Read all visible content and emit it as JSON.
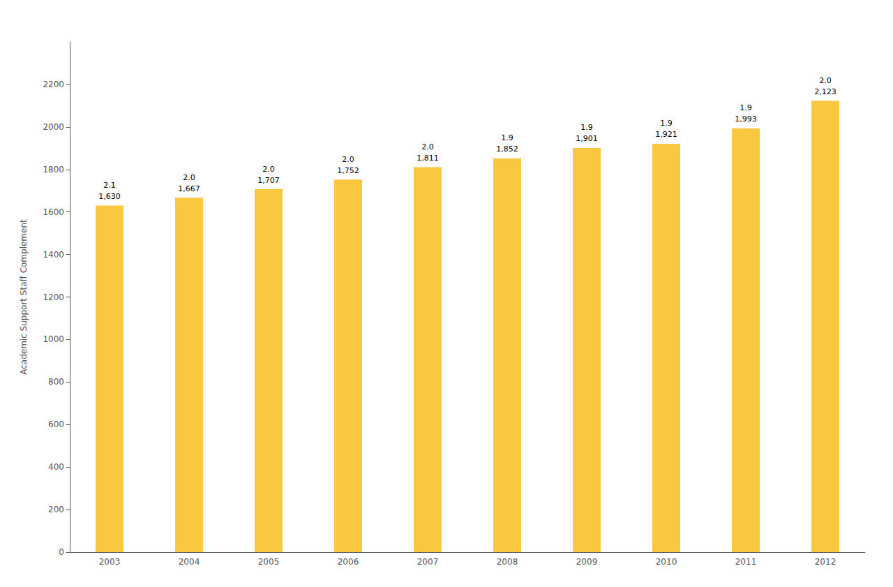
{
  "chart_data": {
    "type": "bar",
    "categories": [
      "2003",
      "2004",
      "2005",
      "2006",
      "2007",
      "2008",
      "2009",
      "2010",
      "2011",
      "2012"
    ],
    "values": [
      1630,
      1667,
      1707,
      1752,
      1811,
      1852,
      1901,
      1921,
      1993,
      2123
    ],
    "value_labels": [
      "1,630",
      "1,667",
      "1,707",
      "1,752",
      "1,811",
      "1,852",
      "1,901",
      "1,921",
      "1,993",
      "2,123"
    ],
    "ratios": [
      2.1,
      {
        "value": 2.0,
        "label": "2.0"
      },
      {
        "value": 2.0,
        "label": "2.0"
      },
      {
        "value": 2.0,
        "label": "2.0"
      },
      {
        "value": 2.0,
        "label": "2.0"
      },
      1.9,
      1.9,
      1.9,
      1.9,
      {
        "value": 2.0,
        "label": "2.0"
      }
    ],
    "color": "#F9C840",
    "ylabel": "Academic Support Staff Complement",
    "ylim": [
      0,
      2400
    ],
    "yticks": [
      0,
      200,
      400,
      600,
      800,
      1000,
      1200,
      1400,
      1600,
      1800,
      2000,
      2200
    ],
    "grid": false,
    "data_labels": true
  }
}
